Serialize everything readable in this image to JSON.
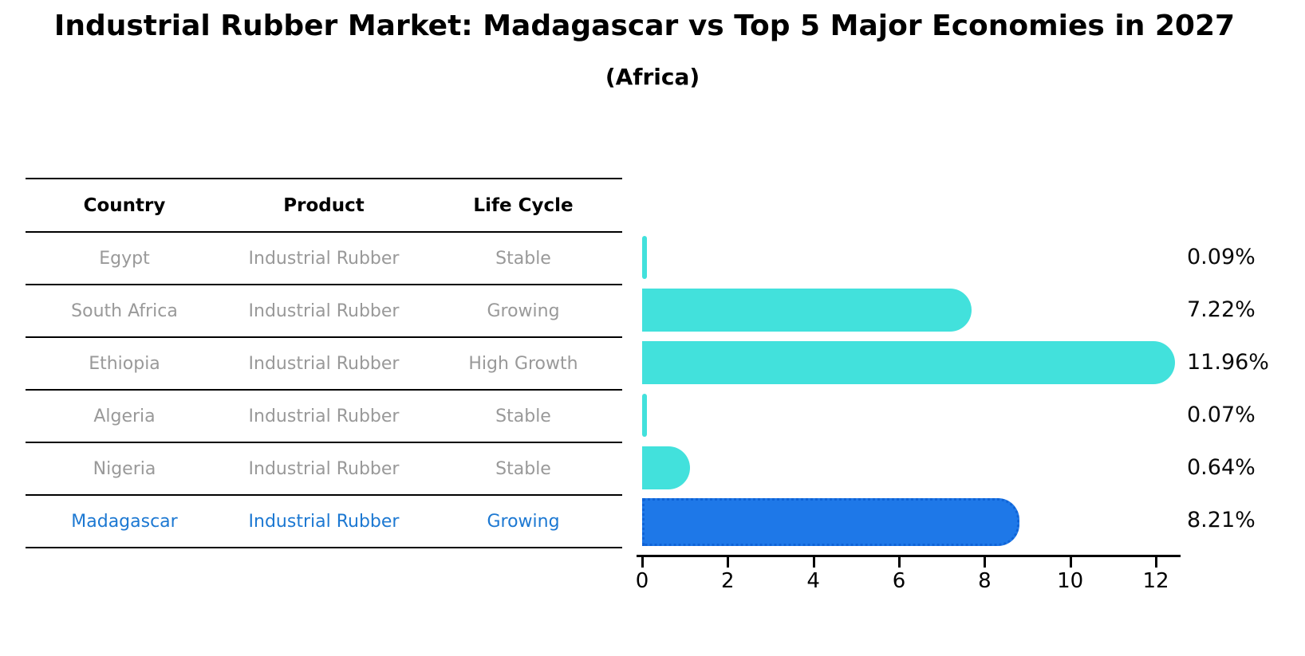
{
  "header": {
    "title": "Industrial Rubber Market: Madagascar vs Top 5 Major Economies in 2027",
    "subtitle": "(Africa)"
  },
  "table": {
    "columns": [
      "Country",
      "Product",
      "Life Cycle"
    ],
    "rows": [
      {
        "country": "Egypt",
        "product": "Industrial Rubber",
        "life_cycle": "Stable",
        "highlight": false
      },
      {
        "country": "South Africa",
        "product": "Industrial Rubber",
        "life_cycle": "Growing",
        "highlight": false
      },
      {
        "country": "Ethiopia",
        "product": "Industrial Rubber",
        "life_cycle": "High Growth",
        "highlight": false
      },
      {
        "country": "Algeria",
        "product": "Industrial Rubber",
        "life_cycle": "Stable",
        "highlight": false
      },
      {
        "country": "Nigeria",
        "product": "Industrial Rubber",
        "life_cycle": "Stable",
        "highlight": false
      },
      {
        "country": "Madagascar",
        "product": "Industrial Rubber",
        "life_cycle": "Growing",
        "highlight": true
      }
    ]
  },
  "chart_data": {
    "type": "bar",
    "orientation": "horizontal",
    "title": "Industrial Rubber Market: Madagascar vs Top 5 Major Economies in 2027 (Africa)",
    "categories": [
      "Egypt",
      "South Africa",
      "Ethiopia",
      "Algeria",
      "Nigeria",
      "Madagascar"
    ],
    "values": [
      0.09,
      7.22,
      11.96,
      0.07,
      0.64,
      8.21
    ],
    "value_labels": [
      "0.09%",
      "7.22%",
      "11.96%",
      "0.07%",
      "0.64%",
      "8.21%"
    ],
    "x_ticks": [
      "0",
      "2",
      "4",
      "6",
      "8",
      "10",
      "12"
    ],
    "x_tick_values": [
      0,
      2,
      4,
      6,
      8,
      10,
      12
    ],
    "xlim": [
      0,
      12.55
    ],
    "grid": false,
    "legend": false,
    "highlight_index": 5,
    "colors": {
      "bar": "#42E1DC",
      "highlight_bar": "#1E78E8",
      "highlight_edge": "#0F63D6",
      "highlight_text": "#1C78D2",
      "row_text": "#999999",
      "axis": "#000000"
    }
  }
}
